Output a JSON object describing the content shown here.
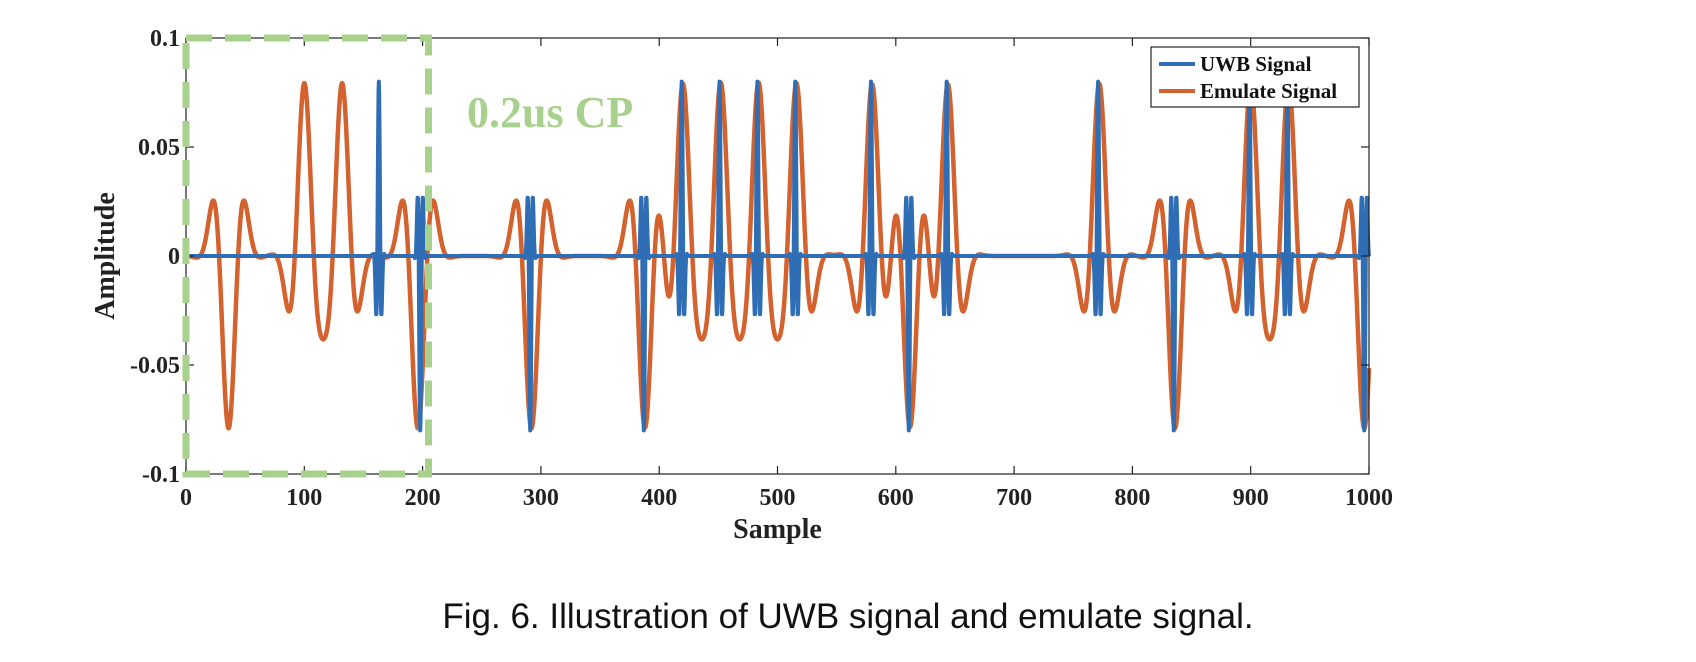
{
  "caption": "Fig. 6.  Illustration of UWB signal and emulate signal.",
  "colors": {
    "uwb": "#2f6eb5",
    "emulate": "#d4622f",
    "cp_box": "#a9d18e",
    "axis": "#222222"
  },
  "chart_data": {
    "type": "line",
    "title": "",
    "xlabel": "Sample",
    "ylabel": "Amplitude",
    "xlim": [
      0,
      1000
    ],
    "ylim": [
      -0.1,
      0.1
    ],
    "xticks": [
      "0",
      "100",
      "200",
      "300",
      "400",
      "500",
      "600",
      "700",
      "800",
      "900",
      "1000"
    ],
    "yticks": [
      "-0.1",
      "-0.05",
      "0",
      "0.05",
      "0.1"
    ],
    "grid": false,
    "legend_position": "top-right",
    "series": [
      {
        "name": "UWB Signal",
        "pulses": [
          {
            "center": 163,
            "sign": 1
          },
          {
            "center": 198,
            "sign": -1
          },
          {
            "center": 291,
            "sign": -1
          },
          {
            "center": 387,
            "sign": -1
          },
          {
            "center": 419,
            "sign": 1
          },
          {
            "center": 451,
            "sign": 1
          },
          {
            "center": 483,
            "sign": 1
          },
          {
            "center": 515,
            "sign": 1
          },
          {
            "center": 579,
            "sign": 1
          },
          {
            "center": 611,
            "sign": -1
          },
          {
            "center": 643,
            "sign": 1
          },
          {
            "center": 771,
            "sign": 1
          },
          {
            "center": 835,
            "sign": -1
          },
          {
            "center": 899,
            "sign": 1
          },
          {
            "center": 931,
            "sign": 1
          },
          {
            "center": 996,
            "sign": -1
          }
        ],
        "peak": 0.08
      },
      {
        "name": "Emulate Signal",
        "pulses": [
          {
            "center": 36,
            "sign": -1
          },
          {
            "center": 100,
            "sign": 1
          },
          {
            "center": 132,
            "sign": 1
          },
          {
            "center": 196,
            "sign": -1
          },
          {
            "center": 292,
            "sign": -1
          },
          {
            "center": 388,
            "sign": -1
          },
          {
            "center": 420,
            "sign": 1
          },
          {
            "center": 452,
            "sign": 1
          },
          {
            "center": 484,
            "sign": 1
          },
          {
            "center": 516,
            "sign": 1
          },
          {
            "center": 580,
            "sign": 1
          },
          {
            "center": 612,
            "sign": -1
          },
          {
            "center": 644,
            "sign": 1
          },
          {
            "center": 772,
            "sign": 1
          },
          {
            "center": 836,
            "sign": -1
          },
          {
            "center": 900,
            "sign": 1
          },
          {
            "center": 932,
            "sign": 1
          },
          {
            "center": 996,
            "sign": -1
          }
        ],
        "peak": 0.079
      }
    ],
    "annotations": [
      {
        "text": "0.2us CP",
        "region_x": [
          0,
          205
        ],
        "region_y": [
          -0.1,
          0.1
        ]
      }
    ]
  }
}
